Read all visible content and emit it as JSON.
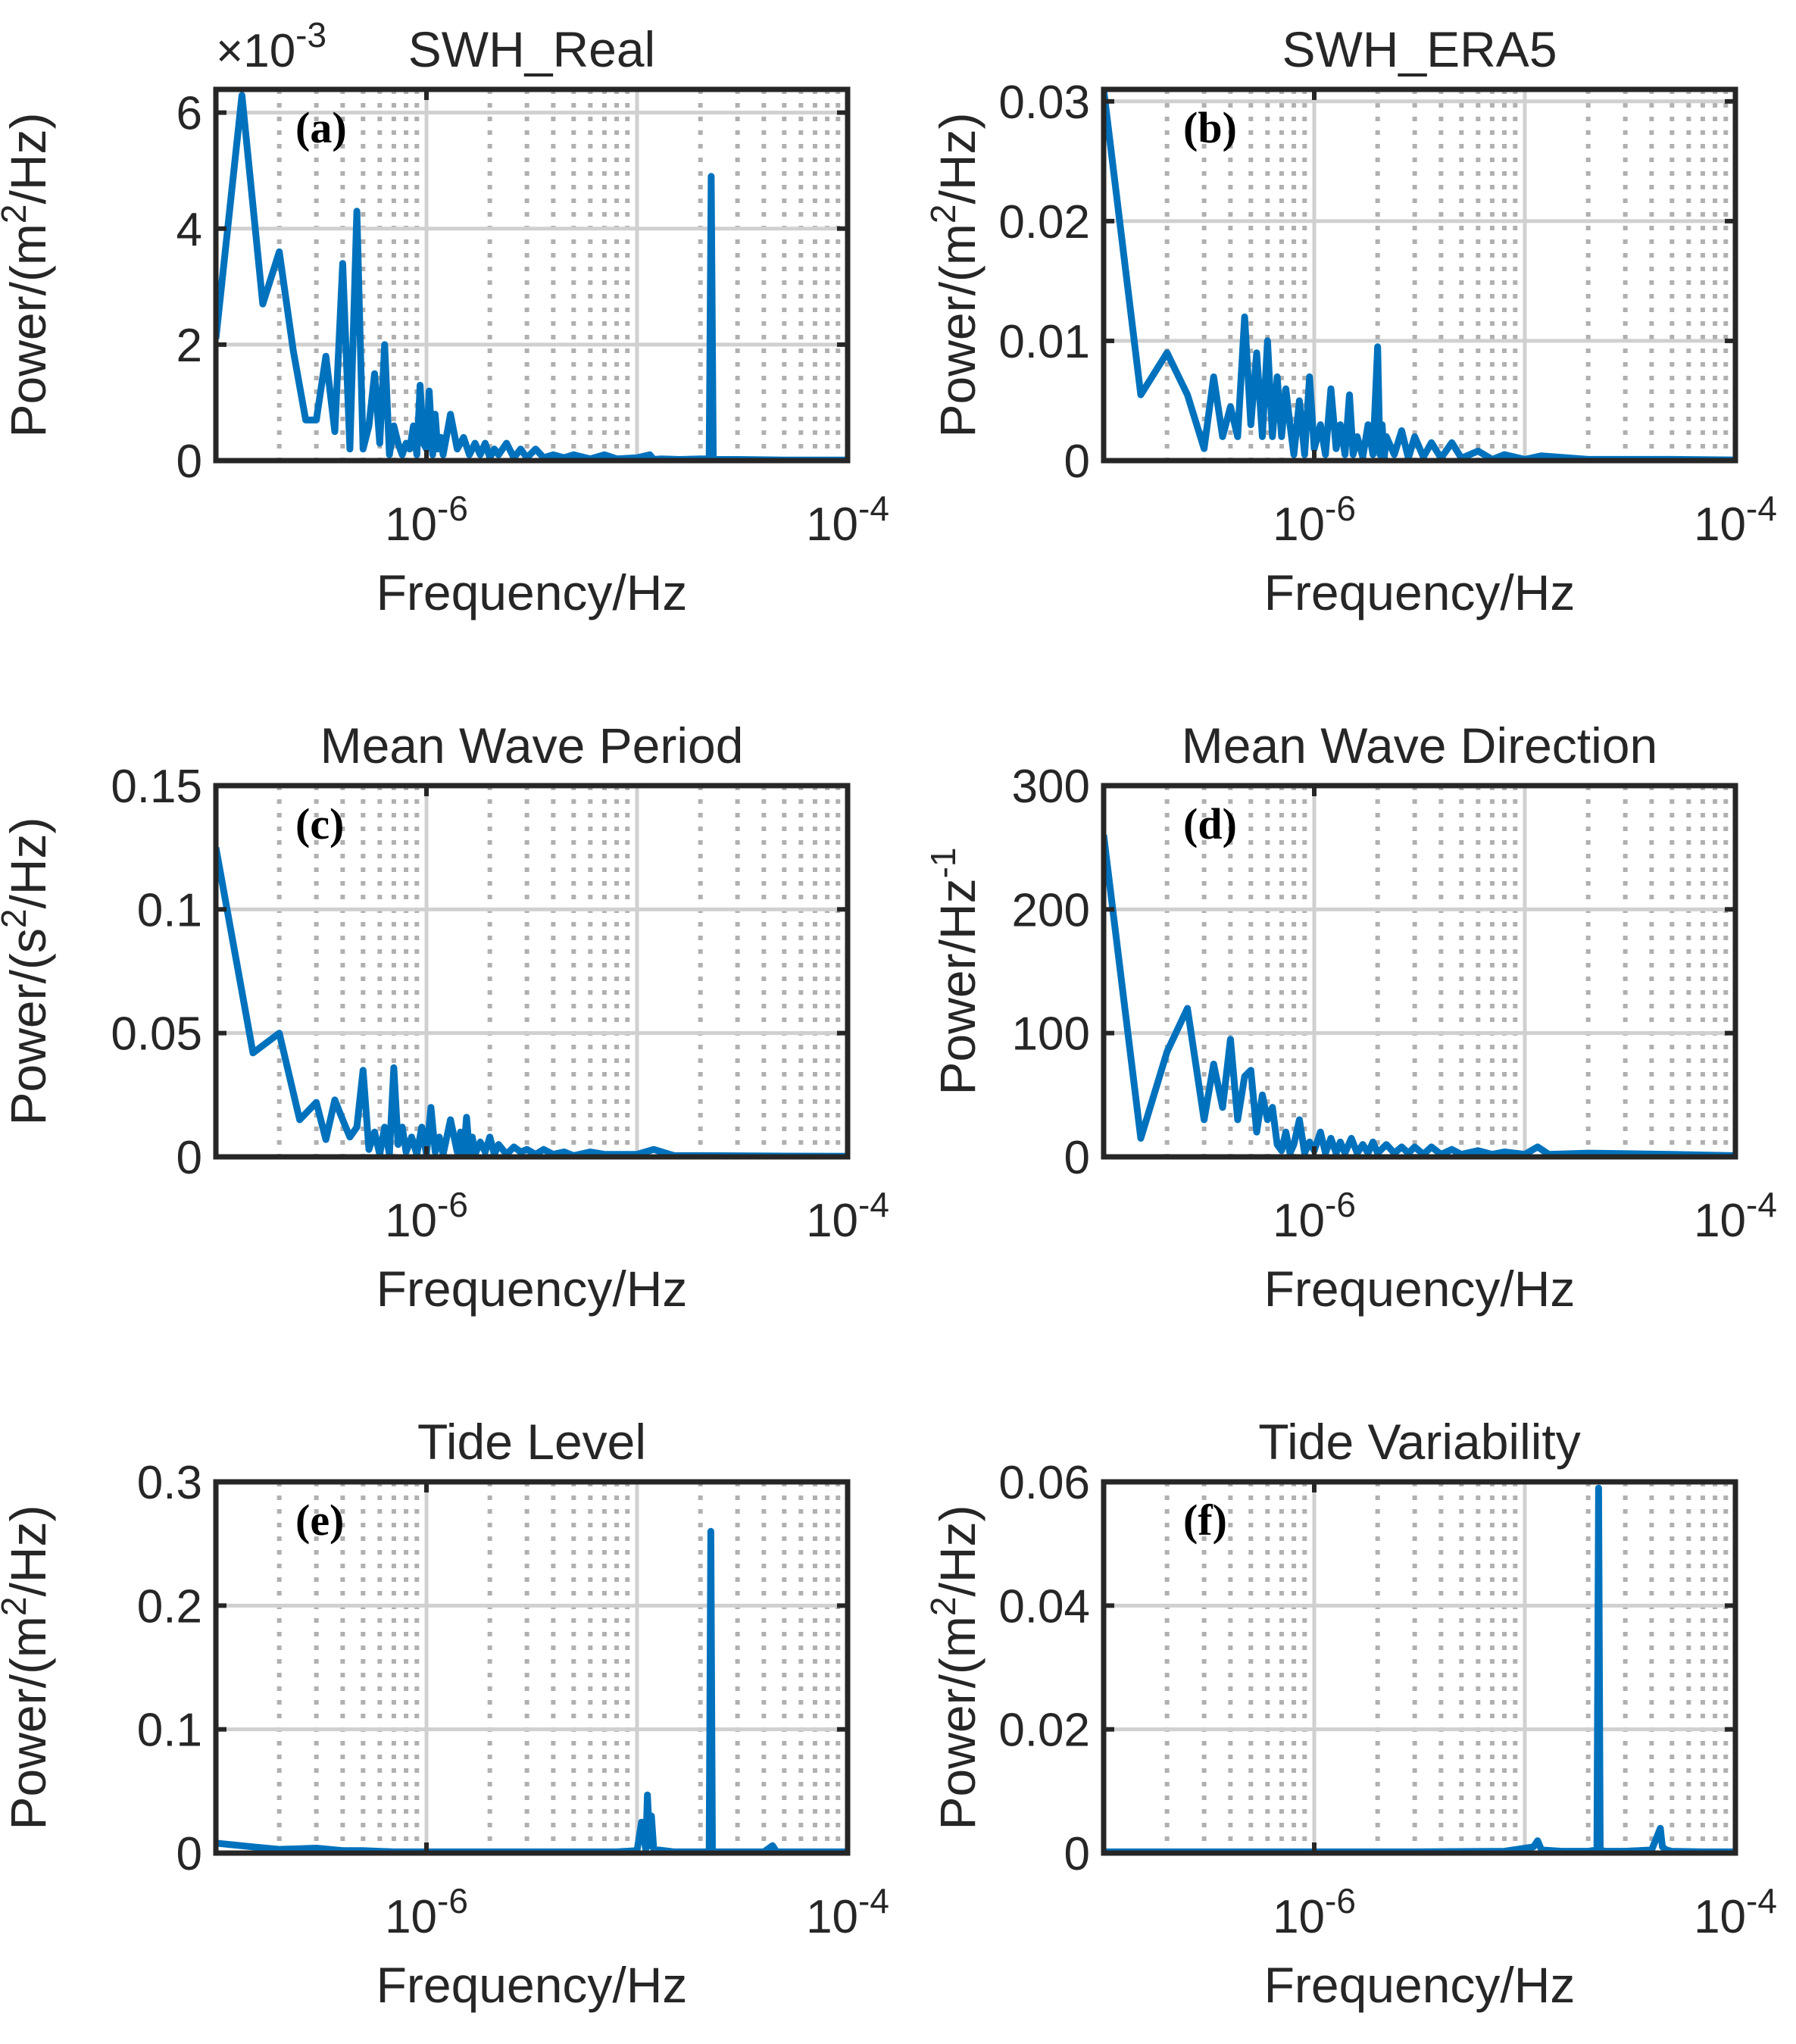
{
  "figure": {
    "x_axis": {
      "scale": "log",
      "xlim": [
        1e-07,
        0.0001
      ],
      "ticks": [
        {
          "mantissa": "10",
          "exponent": "-6",
          "value": 1e-06
        },
        {
          "mantissa": "10",
          "exponent": "-4",
          "value": 0.0001
        }
      ]
    },
    "colors": {
      "line": "#0072BD",
      "axis": "#262626",
      "grid_major": "#d0d0d0",
      "grid_minor": "#b0b0b0"
    }
  },
  "chart_data": [
    {
      "id": "a",
      "type": "line",
      "title": "SWH_Real",
      "tag": "(a)",
      "xlabel": "Frequency/Hz",
      "ylabel": {
        "pre": "Power/(m",
        "sup": "2",
        "post": "/Hz)"
      },
      "ylim": [
        0,
        0.0064
      ],
      "yticks": [
        0,
        0.002,
        0.004,
        0.006
      ],
      "ytick_labels": [
        "0",
        "2",
        "4",
        "6"
      ],
      "scale_note": {
        "base": "×10",
        "exp": "-3"
      },
      "x": [
        1e-07,
        1.33e-07,
        1.67e-07,
        2e-07,
        2.33e-07,
        2.67e-07,
        3e-07,
        3.33e-07,
        3.67e-07,
        4e-07,
        4.33e-07,
        4.67e-07,
        5e-07,
        5.33e-07,
        5.67e-07,
        6e-07,
        6.33e-07,
        6.67e-07,
        7e-07,
        7.33e-07,
        7.67e-07,
        8e-07,
        8.33e-07,
        8.67e-07,
        9e-07,
        9.33e-07,
        9.67e-07,
        1e-06,
        1.03e-06,
        1.07e-06,
        1.1e-06,
        1.13e-06,
        1.17e-06,
        1.2e-06,
        1.3e-06,
        1.4e-06,
        1.5e-06,
        1.6e-06,
        1.7e-06,
        1.8e-06,
        1.9e-06,
        2e-06,
        2.1e-06,
        2.2e-06,
        2.4e-06,
        2.6e-06,
        2.8e-06,
        3e-06,
        3.3e-06,
        3.6e-06,
        4e-06,
        4.5e-06,
        5e-06,
        6e-06,
        7e-06,
        8e-06,
        1e-05,
        1.15e-05,
        1.2e-05,
        1.3e-05,
        1.6e-05,
        2e-05,
        2.2e-05,
        2.25e-05,
        2.3e-05,
        2.4e-05,
        3e-05,
        5e-05,
        0.0001
      ],
      "y": [
        0.0021,
        0.0063,
        0.0027,
        0.0036,
        0.0019,
        0.0007,
        0.0007,
        0.0018,
        0.0005,
        0.0034,
        0.0002,
        0.0043,
        0.0002,
        0.0006,
        0.0015,
        0.0003,
        0.002,
        0.0001,
        0.0006,
        0.0003,
        0.0001,
        0.0003,
        0.0002,
        0.0006,
        0.0001,
        0.0013,
        0.0003,
        0.0002,
        0.0012,
        0.0001,
        0.0008,
        0.0002,
        0.0004,
        0.0001,
        0.0008,
        0.0002,
        0.0004,
        0.0001,
        0.0003,
        0.0001,
        0.0003,
        5e-05,
        0.0002,
        0.0001,
        0.0003,
        5e-05,
        0.0002,
        5e-05,
        0.0002,
        5e-05,
        0.0001,
        5e-05,
        0.0001,
        3e-05,
        0.0001,
        3e-05,
        5e-05,
        0.0001,
        2e-05,
        3e-05,
        2e-05,
        3e-05,
        3e-05,
        0.0049,
        3e-05,
        2e-05,
        2e-05,
        1e-05,
        1e-05
      ]
    },
    {
      "id": "b",
      "type": "line",
      "title": "SWH_ERA5",
      "tag": "(b)",
      "xlabel": "Frequency/Hz",
      "ylabel": {
        "pre": "Power/(m",
        "sup": "2",
        "post": "/Hz)"
      },
      "ylim": [
        0,
        0.031
      ],
      "yticks": [
        0,
        0.01,
        0.02,
        0.03
      ],
      "ytick_labels": [
        "0",
        "0.01",
        "0.02",
        "0.03"
      ],
      "x": [
        1e-07,
        1.5e-07,
        2e-07,
        2.5e-07,
        3e-07,
        3.33e-07,
        3.67e-07,
        4e-07,
        4.33e-07,
        4.67e-07,
        5e-07,
        5.33e-07,
        5.67e-07,
        6e-07,
        6.33e-07,
        6.67e-07,
        7e-07,
        7.33e-07,
        7.67e-07,
        8e-07,
        8.5e-07,
        9e-07,
        9.5e-07,
        1e-06,
        1.07e-06,
        1.13e-06,
        1.2e-06,
        1.27e-06,
        1.33e-06,
        1.4e-06,
        1.47e-06,
        1.53e-06,
        1.6e-06,
        1.7e-06,
        1.8e-06,
        1.9e-06,
        2e-06,
        2.05e-06,
        2.1e-06,
        2.15e-06,
        2.2e-06,
        2.4e-06,
        2.6e-06,
        2.8e-06,
        3e-06,
        3.3e-06,
        3.6e-06,
        4e-06,
        4.5e-06,
        5e-06,
        6e-06,
        7e-06,
        8e-06,
        1e-05,
        1.2e-05,
        2e-05,
        5e-05,
        0.0001
      ],
      "y": [
        0.031,
        0.0055,
        0.009,
        0.0055,
        0.001,
        0.007,
        0.002,
        0.0045,
        0.002,
        0.012,
        0.003,
        0.009,
        0.002,
        0.01,
        0.002,
        0.007,
        0.002,
        0.006,
        0.003,
        0.0005,
        0.005,
        0.0005,
        0.007,
        0.001,
        0.003,
        0.0005,
        0.006,
        0.001,
        0.003,
        0.0005,
        0.0055,
        0.0005,
        0.002,
        0.0003,
        0.003,
        0.0005,
        0.0095,
        0.0005,
        0.003,
        0.0002,
        0.002,
        0.0005,
        0.0025,
        0.0002,
        0.002,
        0.0003,
        0.0015,
        0.0002,
        0.0015,
        0.0002,
        0.0008,
        0.0001,
        0.0005,
        0.0001,
        0.0004,
        0.0001,
        0.0001,
        5e-05
      ]
    },
    {
      "id": "c",
      "type": "line",
      "title": "Mean Wave Period",
      "tag": "(c)",
      "xlabel": "Frequency/Hz",
      "ylabel": {
        "pre": "Power/(s",
        "sup": "2",
        "post": "/Hz)"
      },
      "ylim": [
        0,
        0.15
      ],
      "yticks": [
        0,
        0.05,
        0.1,
        0.15
      ],
      "ytick_labels": [
        "0",
        "0.05",
        "0.1",
        "0.15"
      ],
      "x": [
        1e-07,
        1.5e-07,
        2e-07,
        2.5e-07,
        3e-07,
        3.33e-07,
        3.67e-07,
        4e-07,
        4.33e-07,
        4.67e-07,
        5e-07,
        5.33e-07,
        5.67e-07,
        6e-07,
        6.33e-07,
        6.67e-07,
        7e-07,
        7.33e-07,
        7.67e-07,
        8e-07,
        8.5e-07,
        9e-07,
        9.5e-07,
        1e-06,
        1.05e-06,
        1.1e-06,
        1.15e-06,
        1.2e-06,
        1.3e-06,
        1.4e-06,
        1.45e-06,
        1.5e-06,
        1.55e-06,
        1.6e-06,
        1.65e-06,
        1.7e-06,
        1.8e-06,
        1.9e-06,
        2e-06,
        2.1e-06,
        2.2e-06,
        2.4e-06,
        2.6e-06,
        2.8e-06,
        3e-06,
        3.3e-06,
        3.6e-06,
        4e-06,
        4.5e-06,
        5e-06,
        6e-06,
        7e-06,
        8e-06,
        1e-05,
        1.2e-05,
        1.5e-05,
        2e-05,
        5e-05,
        0.0001
      ],
      "y": [
        0.125,
        0.042,
        0.05,
        0.015,
        0.022,
        0.007,
        0.023,
        0.015,
        0.008,
        0.012,
        0.035,
        0.003,
        0.01,
        0.001,
        0.012,
        0.001,
        0.036,
        0.005,
        0.012,
        0.002,
        0.008,
        0.001,
        0.012,
        0.001,
        0.02,
        0.002,
        0.008,
        0.001,
        0.015,
        0.002,
        0.01,
        0.001,
        0.016,
        0.002,
        0.008,
        0.001,
        0.006,
        0.002,
        0.008,
        0.001,
        0.005,
        0.001,
        0.004,
        0.002,
        0.003,
        0.001,
        0.003,
        0.001,
        0.002,
        0.0005,
        0.002,
        0.001,
        0.001,
        0.001,
        0.003,
        0.0005,
        0.0005,
        0.0003,
        0.0002
      ]
    },
    {
      "id": "d",
      "type": "line",
      "title": "Mean Wave Direction",
      "tag": "(d)",
      "xlabel": "Frequency/Hz",
      "ylabel": {
        "pre": "Power/Hz",
        "sup": "-1",
        "post": ""
      },
      "ylim": [
        0,
        300
      ],
      "yticks": [
        0,
        100,
        200,
        300
      ],
      "ytick_labels": [
        "0",
        "100",
        "200",
        "300"
      ],
      "x": [
        1e-07,
        1.5e-07,
        2e-07,
        2.5e-07,
        3e-07,
        3.33e-07,
        3.67e-07,
        4e-07,
        4.33e-07,
        4.67e-07,
        5e-07,
        5.33e-07,
        5.67e-07,
        6e-07,
        6.33e-07,
        6.67e-07,
        7e-07,
        7.33e-07,
        7.67e-07,
        8e-07,
        8.5e-07,
        9e-07,
        9.5e-07,
        1e-06,
        1.07e-06,
        1.13e-06,
        1.2e-06,
        1.27e-06,
        1.33e-06,
        1.4e-06,
        1.5e-06,
        1.6e-06,
        1.7e-06,
        1.8e-06,
        1.9e-06,
        2e-06,
        2.2e-06,
        2.4e-06,
        2.6e-06,
        2.8e-06,
        3e-06,
        3.3e-06,
        3.6e-06,
        4e-06,
        4.5e-06,
        5e-06,
        6e-06,
        7e-06,
        8e-06,
        1e-05,
        1.15e-05,
        1.3e-05,
        2e-05,
        5e-05,
        0.0001
      ],
      "y": [
        260,
        15,
        85,
        120,
        30,
        75,
        40,
        95,
        30,
        65,
        70,
        20,
        50,
        30,
        40,
        10,
        5,
        20,
        3,
        10,
        30,
        3,
        12,
        5,
        20,
        3,
        15,
        3,
        12,
        3,
        15,
        3,
        10,
        3,
        12,
        3,
        10,
        3,
        8,
        3,
        8,
        2,
        8,
        2,
        6,
        2,
        5,
        2,
        4,
        2,
        8,
        2,
        3,
        2,
        1
      ]
    },
    {
      "id": "e",
      "type": "line",
      "title": "Tide Level",
      "tag": "(e)",
      "xlabel": "Frequency/Hz",
      "ylabel": {
        "pre": "Power/(m",
        "sup": "2",
        "post": "/Hz)"
      },
      "ylim": [
        0,
        0.3
      ],
      "yticks": [
        0,
        0.1,
        0.2,
        0.3
      ],
      "ytick_labels": [
        "0",
        "0.1",
        "0.2",
        "0.3"
      ],
      "x": [
        1e-07,
        1.5e-07,
        2e-07,
        3e-07,
        4e-07,
        5e-07,
        7e-07,
        1e-06,
        1.5e-06,
        2e-06,
        3e-06,
        5e-06,
        8e-06,
        1e-05,
        1.05e-05,
        1.1e-05,
        1.12e-05,
        1.15e-05,
        1.17e-05,
        1.2e-05,
        1.5e-05,
        2e-05,
        2.2e-05,
        2.24e-05,
        2.28e-05,
        2.35e-05,
        2.5e-05,
        3e-05,
        4e-05,
        4.4e-05,
        4.6e-05,
        5e-05,
        7e-05,
        0.0001
      ],
      "y": [
        0.008,
        0.005,
        0.003,
        0.004,
        0.002,
        0.002,
        0.001,
        0.001,
        0.001,
        0.001,
        0.001,
        0.001,
        0.001,
        0.002,
        0.025,
        0.003,
        0.047,
        0.006,
        0.03,
        0.003,
        0.001,
        0.001,
        0.001,
        0.26,
        0.002,
        0.001,
        0.001,
        0.001,
        0.001,
        0.006,
        0.001,
        0.001,
        0.001,
        0.001
      ]
    },
    {
      "id": "f",
      "type": "line",
      "title": "Tide Variability",
      "tag": "(f)",
      "xlabel": "Frequency/Hz",
      "ylabel": {
        "pre": "Power/(m",
        "sup": "2",
        "post": "/Hz)"
      },
      "ylim": [
        0,
        0.06
      ],
      "yticks": [
        0,
        0.02,
        0.04,
        0.06
      ],
      "ytick_labels": [
        "0",
        "0.02",
        "0.04",
        "0.06"
      ],
      "x": [
        1e-07,
        3e-07,
        1e-06,
        3e-06,
        8e-06,
        1.1e-05,
        1.15e-05,
        1.2e-05,
        1.5e-05,
        2e-05,
        2.2e-05,
        2.24e-05,
        2.28e-05,
        2.4e-05,
        3e-05,
        4e-05,
        4.4e-05,
        4.5e-05,
        4.7e-05,
        5e-05,
        7e-05,
        0.0001
      ],
      "y": [
        0.0002,
        0.0002,
        0.0002,
        0.0002,
        0.0003,
        0.001,
        0.002,
        0.0005,
        0.0003,
        0.0003,
        0.0005,
        0.059,
        0.0005,
        0.0003,
        0.0003,
        0.0005,
        0.004,
        0.001,
        0.0005,
        0.0003,
        0.0002,
        0.0002
      ]
    }
  ]
}
